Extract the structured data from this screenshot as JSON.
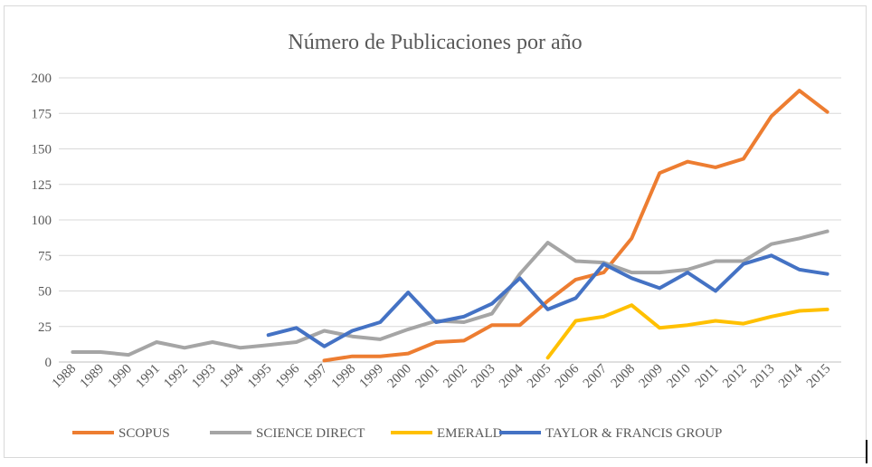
{
  "chart_data": {
    "type": "line",
    "title": "Número de Publicaciones por año",
    "xlabel": "",
    "ylabel": "",
    "ylim": [
      0,
      200
    ],
    "yticks": [
      0,
      25,
      50,
      75,
      100,
      125,
      150,
      175,
      200
    ],
    "grid": true,
    "legend_position": "bottom",
    "categories": [
      "1988",
      "1989",
      "1990",
      "1991",
      "1992",
      "1993",
      "1994",
      "1995",
      "1996",
      "1997",
      "1998",
      "1999",
      "2000",
      "2001",
      "2002",
      "2003",
      "2004",
      "2005",
      "2006",
      "2007",
      "2008",
      "2009",
      "2010",
      "2011",
      "2012",
      "2013",
      "2014",
      "2015"
    ],
    "series": [
      {
        "name": "SCOPUS",
        "color": "#ED7D31",
        "values": [
          null,
          null,
          null,
          null,
          null,
          null,
          null,
          null,
          null,
          1,
          4,
          4,
          6,
          14,
          15,
          26,
          26,
          43,
          58,
          63,
          87,
          133,
          141,
          137,
          143,
          173,
          191,
          176
        ]
      },
      {
        "name": "SCIENCE DIRECT",
        "color": "#A5A5A5",
        "values": [
          7,
          7,
          5,
          14,
          10,
          14,
          10,
          12,
          14,
          22,
          18,
          16,
          23,
          29,
          28,
          34,
          62,
          84,
          71,
          70,
          63,
          63,
          65,
          71,
          71,
          83,
          87,
          92
        ]
      },
      {
        "name": "EMERALD",
        "color": "#FFC000",
        "values": [
          null,
          null,
          null,
          null,
          null,
          null,
          null,
          null,
          null,
          null,
          null,
          null,
          null,
          null,
          null,
          null,
          null,
          3,
          29,
          32,
          40,
          24,
          26,
          29,
          27,
          32,
          36,
          37
        ]
      },
      {
        "name": "TAYLOR & FRANCIS GROUP",
        "color": "#4472C4",
        "values": [
          null,
          null,
          null,
          null,
          null,
          null,
          null,
          19,
          24,
          11,
          22,
          28,
          49,
          28,
          32,
          41,
          59,
          37,
          45,
          69,
          59,
          52,
          63,
          50,
          69,
          75,
          65,
          62
        ]
      }
    ]
  }
}
